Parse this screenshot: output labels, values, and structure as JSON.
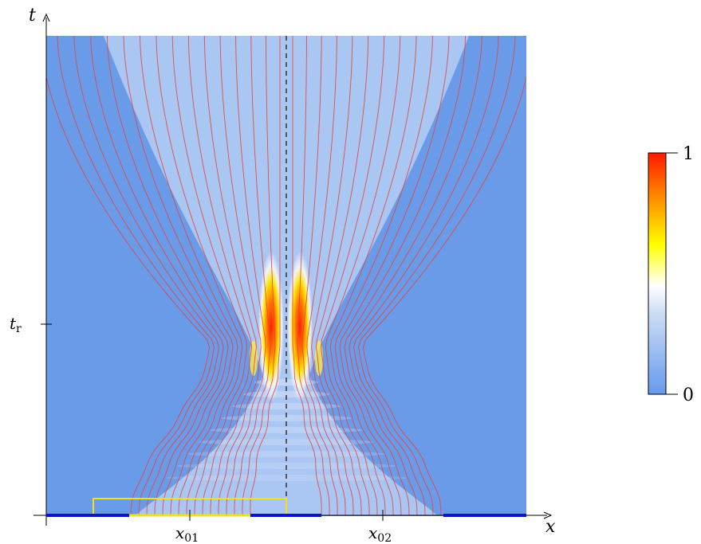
{
  "chart_data": {
    "type": "heatmap",
    "xlabel": "x",
    "ylabel": "t",
    "x_ticks": [
      {
        "label": "x",
        "sub": "01",
        "position": "x01"
      },
      {
        "label": "x",
        "sub": "02",
        "position": "x02"
      }
    ],
    "y_ticks": [
      {
        "label": "t",
        "sub": "r",
        "position": "t_r"
      }
    ],
    "colorbar": {
      "min_label": "0",
      "max_label": "1",
      "range": [
        0,
        1
      ],
      "colors": [
        "#6699ee",
        "#ffffff",
        "#ffff00",
        "#ff8800",
        "#ff0000"
      ]
    },
    "field_colors": {
      "background": "#6a9be8",
      "trajectory": "#e8403a",
      "axis_line_segments": "#0a14c8",
      "slit_box": "#f0e020",
      "symmetry_axis": "#333333"
    },
    "trajectory_count_per_slit": 16,
    "symmetry_line": "dashed vertical at midpoint between slits",
    "notes_visible": []
  }
}
